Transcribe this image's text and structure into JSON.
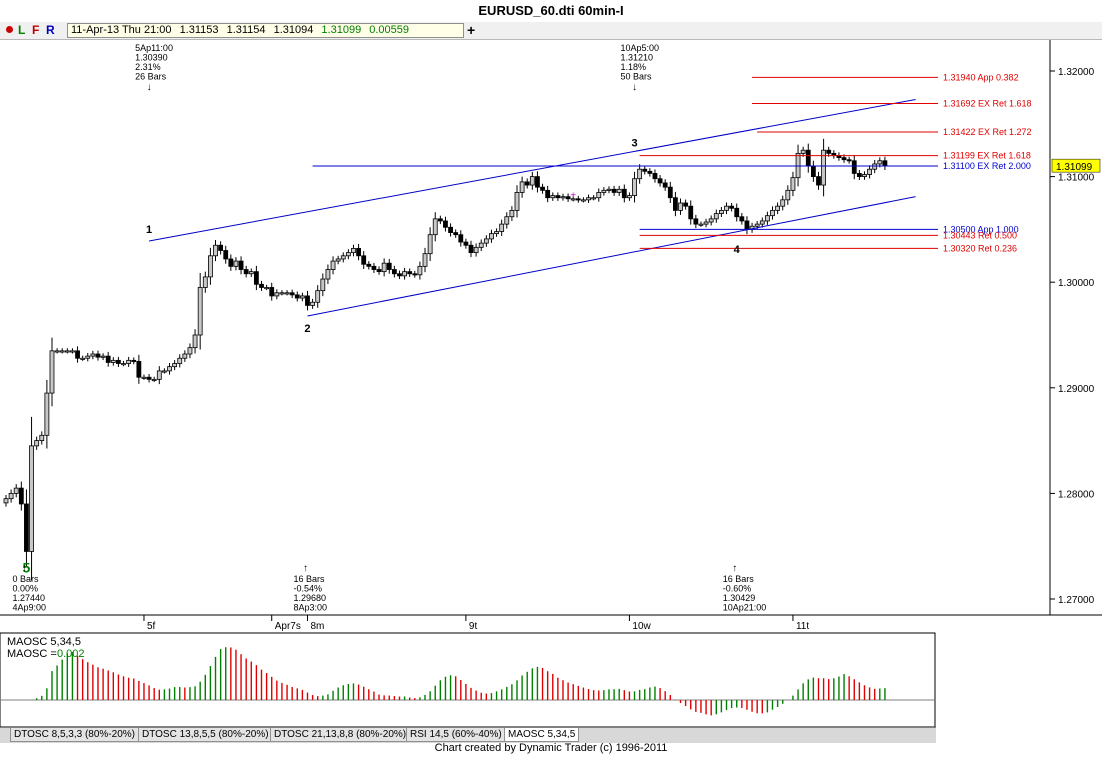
{
  "window": {
    "title": "EURUSD_60.dti 60min-I"
  },
  "toolbar": {
    "letters": [
      "L",
      "F",
      "R"
    ],
    "quote": [
      "11-Apr-13 Thu 21:00",
      "1.31153",
      "1.31154",
      "1.31094",
      "1.31099",
      "0.00559"
    ],
    "add_label": "+"
  },
  "colors": {
    "up": "#c8c8c8",
    "down": "#000000",
    "channel": "#0000c8",
    "fib_red": "#e00000",
    "fib_blue": "#0000d0",
    "osc_red": "#e00000",
    "osc_green": "#008000"
  },
  "chart_data": {
    "type": "candlestick",
    "ylim": [
      1.2655,
      1.3242
    ],
    "y_ticks": [
      "1.32000",
      "1.31000",
      "1.30000",
      "1.29000",
      "1.28000",
      "1.27000"
    ],
    "y_tick_values": [
      1.32,
      1.31,
      1.3,
      1.29,
      1.28,
      1.27
    ],
    "x_labels": [
      {
        "label": "5f",
        "bar": 27
      },
      {
        "label": "Apr7s",
        "bar": 52
      },
      {
        "label": "8m",
        "bar": 59
      },
      {
        "label": "9t",
        "bar": 90
      },
      {
        "label": "10w",
        "bar": 122
      },
      {
        "label": "11t",
        "bar": 154
      }
    ],
    "last_price": "1.31099",
    "closes": [
      1.2795,
      1.28,
      1.2805,
      1.279,
      1.2745,
      1.2845,
      1.285,
      1.2855,
      1.2895,
      1.2935,
      1.2935,
      1.2935,
      1.2935,
      1.2935,
      1.2928,
      1.2928,
      1.293,
      1.2932,
      1.2929,
      1.293,
      1.2924,
      1.2926,
      1.2923,
      1.2923,
      1.2926,
      1.2925,
      1.291,
      1.291,
      1.2908,
      1.2908,
      1.2916,
      1.2916,
      1.292,
      1.2923,
      1.2928,
      1.2932,
      1.2938,
      1.295,
      1.2995,
      1.3005,
      1.3025,
      1.3035,
      1.303,
      1.3022,
      1.3015,
      1.302,
      1.3012,
      1.3008,
      1.301,
      1.2998,
      1.2995,
      1.2995,
      1.2987,
      1.299,
      1.299,
      1.299,
      1.2988,
      1.2985,
      1.2987,
      1.2978,
      1.2981,
      1.2992,
      1.3003,
      1.3012,
      1.302,
      1.3022,
      1.3025,
      1.3028,
      1.3032,
      1.3025,
      1.3017,
      1.3015,
      1.3012,
      1.301,
      1.3018,
      1.3012,
      1.3008,
      1.3006,
      1.301,
      1.3008,
      1.3007,
      1.3015,
      1.3027,
      1.3045,
      1.306,
      1.3058,
      1.3052,
      1.3047,
      1.3045,
      1.3038,
      1.3035,
      1.3028,
      1.3033,
      1.3037,
      1.3041,
      1.3046,
      1.3048,
      1.3055,
      1.3062,
      1.3068,
      1.3085,
      1.3095,
      1.3092,
      1.31,
      1.309,
      1.3087,
      1.308,
      1.3082,
      1.308,
      1.3081,
      1.3079,
      1.3079,
      1.3078,
      1.3078,
      1.308,
      1.308,
      1.3085,
      1.3087,
      1.3088,
      1.3085,
      1.3088,
      1.308,
      1.3082,
      1.3098,
      1.3107,
      1.3105,
      1.3103,
      1.3098,
      1.3094,
      1.309,
      1.308,
      1.3068,
      1.3075,
      1.3072,
      1.306,
      1.3055,
      1.3055,
      1.3057,
      1.306,
      1.3065,
      1.3068,
      1.3072,
      1.307,
      1.3062,
      1.3058,
      1.305,
      1.3053,
      1.3055,
      1.3058,
      1.3063,
      1.3068,
      1.3072,
      1.3078,
      1.3087,
      1.3099,
      1.3122,
      1.3125,
      1.311,
      1.31,
      1.3092,
      1.3125,
      1.3122,
      1.312,
      1.3118,
      1.3116,
      1.3115,
      1.3103,
      1.31,
      1.3102,
      1.3107,
      1.3112,
      1.3115,
      1.311
    ],
    "swing_labels": [
      {
        "label": "5",
        "bar": 4,
        "price": 1.2744,
        "pos": "below"
      },
      {
        "label": "1",
        "bar": 28,
        "price": 1.3039,
        "pos": "above"
      },
      {
        "label": "2",
        "bar": 59,
        "price": 1.2968,
        "pos": "below"
      },
      {
        "label": "3",
        "bar": 123,
        "price": 1.3121,
        "pos": "above"
      },
      {
        "label": "4",
        "bar": 143,
        "price": 1.3043,
        "pos": "below"
      }
    ],
    "annotations": [
      {
        "bar": 28,
        "side": "top",
        "lines": [
          "5Ap11:00",
          "1.30390",
          "2.31%",
          "26 Bars"
        ]
      },
      {
        "bar": 123,
        "side": "top",
        "lines": [
          "10Ap5:00",
          "1.31210",
          "1.18%",
          "50 Bars"
        ]
      },
      {
        "bar": 4,
        "side": "bottom",
        "lines": [
          "0 Bars",
          "0.00%",
          "1.27440",
          "4Ap9:00"
        ]
      },
      {
        "bar": 59,
        "side": "bottom",
        "lines": [
          "16 Bars",
          "-0.54%",
          "1.29680",
          "8Ap3:00"
        ]
      },
      {
        "bar": 143,
        "side": "bottom",
        "lines": [
          "16 Bars",
          "-0.60%",
          "1.30429",
          "10Ap21:00"
        ]
      }
    ],
    "channel_lines": [
      {
        "from": [
          28,
          1.3039
        ],
        "to": [
          178,
          1.3173
        ]
      },
      {
        "from": [
          59,
          1.2968
        ],
        "to": [
          178,
          1.3081
        ]
      }
    ],
    "fib_levels": [
      {
        "price": 1.3194,
        "label": "1.31940 App 0.382",
        "color": "red",
        "start_bar": 146
      },
      {
        "price": 1.31692,
        "label": "1.31692 EX Ret 1.618",
        "color": "red",
        "start_bar": 146
      },
      {
        "price": 1.31422,
        "label": "1.31422 EX Ret 1.272",
        "color": "red",
        "start_bar": 147
      },
      {
        "price": 1.31199,
        "label": "1.31199 EX Ret 1.618",
        "color": "red",
        "start_bar": 124
      },
      {
        "price": 1.311,
        "label": "1.31100 EX Ret 2.000",
        "color": "blue",
        "start_bar": 60
      },
      {
        "price": 1.305,
        "label": "1.30500 App 1.000",
        "color": "blue",
        "start_bar": 124
      },
      {
        "price": 1.30443,
        "label": "1.30443 Ret 0.500",
        "color": "red",
        "start_bar": 124
      },
      {
        "price": 1.3032,
        "label": "1.30320 Ret 0.236",
        "color": "red",
        "start_bar": 124
      }
    ],
    "oscillator": {
      "name": "MAOSC 5,34,5",
      "value_label": "MAOSC =",
      "value": "0.002"
    }
  },
  "tabs": [
    "DTOSC 8,5,3,3 (80%-20%)",
    "DTOSC 13,8,5,5 (80%-20%)",
    "DTOSC 21,13,8,8 (80%-20%)",
    "RSI 14,5 (60%-40%)",
    "MAOSC 5,34,5"
  ],
  "footer": "Chart created by Dynamic Trader  (c) 1996-2011"
}
